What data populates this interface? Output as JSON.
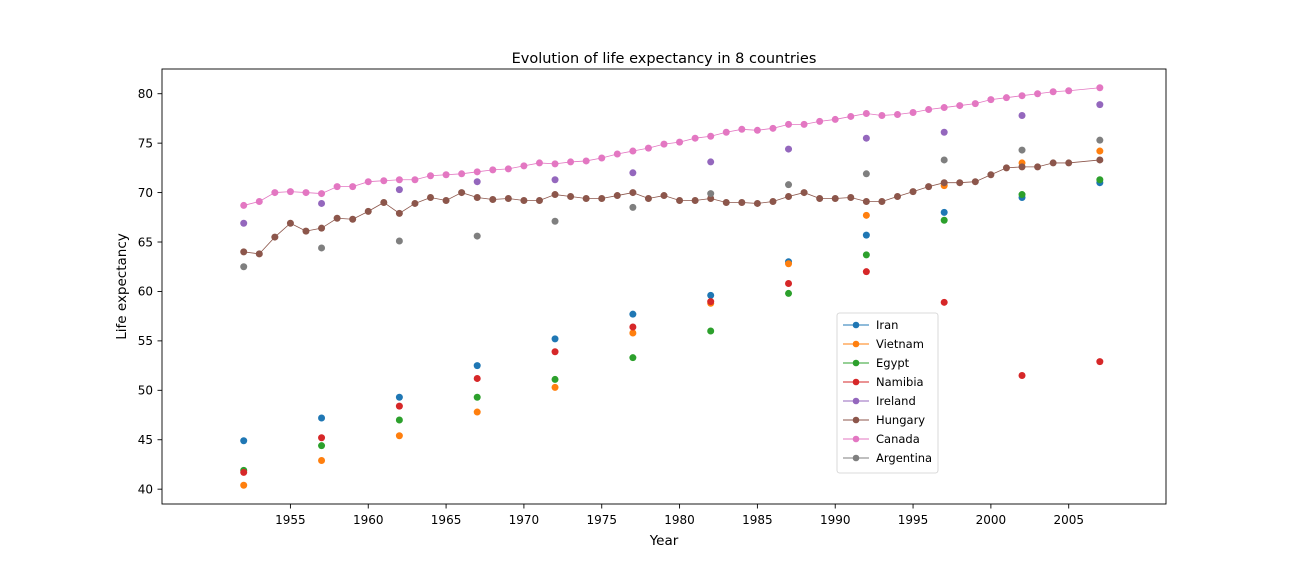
{
  "chart_data": {
    "type": "line",
    "title": "Evolution of life expectancy in 8 countries",
    "xlabel": "Year",
    "ylabel": "Life expectancy",
    "xlim": [
      1946.75,
      2011.25
    ],
    "ylim": [
      38.5,
      82.5
    ],
    "xticks": [
      1955,
      1960,
      1965,
      1970,
      1975,
      1980,
      1985,
      1990,
      1995,
      2000,
      2005
    ],
    "yticks": [
      40,
      45,
      50,
      55,
      60,
      65,
      70,
      75,
      80
    ],
    "legend_position": "center-right (lower)",
    "grid": false,
    "series": [
      {
        "name": "Iran",
        "color": "#1f77b4",
        "x": [
          1952,
          1957,
          1962,
          1967,
          1972,
          1977,
          1982,
          1987,
          1992,
          1997,
          2002,
          2007
        ],
        "y": [
          44.9,
          47.2,
          49.3,
          52.5,
          55.2,
          57.7,
          59.6,
          63.0,
          65.7,
          68.0,
          69.5,
          71.0
        ]
      },
      {
        "name": "Vietnam",
        "color": "#ff7f0e",
        "x": [
          1952,
          1957,
          1962,
          1967,
          1972,
          1977,
          1982,
          1987,
          1992,
          1997,
          2002,
          2007
        ],
        "y": [
          40.4,
          42.9,
          45.4,
          47.8,
          50.3,
          55.8,
          58.8,
          62.8,
          67.7,
          70.7,
          73.0,
          74.2
        ]
      },
      {
        "name": "Egypt",
        "color": "#2ca02c",
        "x": [
          1952,
          1957,
          1962,
          1967,
          1972,
          1977,
          1982,
          1987,
          1992,
          1997,
          2002,
          2007
        ],
        "y": [
          41.9,
          44.4,
          47.0,
          49.3,
          51.1,
          53.3,
          56.0,
          59.8,
          63.7,
          67.2,
          69.8,
          71.3
        ]
      },
      {
        "name": "Namibia",
        "color": "#d62728",
        "x": [
          1952,
          1957,
          1962,
          1967,
          1972,
          1977,
          1982,
          1987,
          1992,
          1997,
          2002,
          2007
        ],
        "y": [
          41.7,
          45.2,
          48.4,
          51.2,
          53.9,
          56.4,
          58.97,
          60.8,
          62.0,
          58.9,
          51.5,
          52.9
        ]
      },
      {
        "name": "Ireland",
        "color": "#9467bd",
        "x": [
          1952,
          1957,
          1962,
          1967,
          1972,
          1977,
          1982,
          1987,
          1992,
          1997,
          2002,
          2007
        ],
        "y": [
          66.9,
          68.9,
          70.3,
          71.1,
          71.3,
          72.0,
          73.1,
          74.4,
          75.5,
          76.1,
          77.8,
          78.9
        ]
      },
      {
        "name": "Hungary",
        "color": "#8c564b",
        "x": [
          1952,
          1953,
          1954,
          1955,
          1956,
          1957,
          1958,
          1959,
          1960,
          1961,
          1962,
          1963,
          1964,
          1965,
          1966,
          1967,
          1968,
          1969,
          1970,
          1971,
          1972,
          1973,
          1974,
          1975,
          1976,
          1977,
          1978,
          1979,
          1980,
          1981,
          1982,
          1983,
          1984,
          1985,
          1986,
          1987,
          1988,
          1989,
          1990,
          1991,
          1992,
          1993,
          1994,
          1995,
          1996,
          1997,
          1998,
          1999,
          2000,
          2001,
          2002,
          2003,
          2004,
          2005,
          2007
        ],
        "y": [
          64.0,
          63.8,
          65.5,
          66.9,
          66.1,
          66.4,
          67.4,
          67.3,
          68.1,
          69.0,
          67.9,
          68.9,
          69.5,
          69.2,
          70.0,
          69.5,
          69.3,
          69.4,
          69.2,
          69.2,
          69.8,
          69.6,
          69.4,
          69.4,
          69.7,
          70.0,
          69.4,
          69.7,
          69.2,
          69.2,
          69.4,
          69.0,
          69.0,
          68.9,
          69.1,
          69.6,
          70.0,
          69.4,
          69.4,
          69.5,
          69.1,
          69.1,
          69.6,
          70.1,
          70.6,
          71.0,
          71.0,
          71.1,
          71.8,
          72.5,
          72.6,
          72.6,
          73.0,
          73.0,
          73.3
        ]
      },
      {
        "name": "Canada",
        "color": "#e377c2",
        "x": [
          1952,
          1953,
          1954,
          1955,
          1956,
          1957,
          1958,
          1959,
          1960,
          1961,
          1962,
          1963,
          1964,
          1965,
          1966,
          1967,
          1968,
          1969,
          1970,
          1971,
          1972,
          1973,
          1974,
          1975,
          1976,
          1977,
          1978,
          1979,
          1980,
          1981,
          1982,
          1983,
          1984,
          1985,
          1986,
          1987,
          1988,
          1989,
          1990,
          1991,
          1992,
          1993,
          1994,
          1995,
          1996,
          1997,
          1998,
          1999,
          2000,
          2001,
          2002,
          2003,
          2004,
          2005,
          2007
        ],
        "y": [
          68.7,
          69.1,
          70.0,
          70.1,
          70.0,
          69.9,
          70.6,
          70.6,
          71.1,
          71.2,
          71.3,
          71.3,
          71.7,
          71.8,
          71.9,
          72.1,
          72.3,
          72.4,
          72.7,
          73.0,
          72.9,
          73.1,
          73.2,
          73.5,
          73.9,
          74.2,
          74.5,
          74.9,
          75.1,
          75.5,
          75.7,
          76.1,
          76.4,
          76.3,
          76.5,
          76.9,
          76.9,
          77.2,
          77.4,
          77.7,
          78.0,
          77.8,
          77.9,
          78.1,
          78.4,
          78.6,
          78.8,
          79.0,
          79.4,
          79.6,
          79.8,
          80.0,
          80.2,
          80.3,
          80.6
        ]
      },
      {
        "name": "Argentina",
        "color": "#7f7f7f",
        "x": [
          1952,
          1957,
          1962,
          1967,
          1972,
          1977,
          1982,
          1987,
          1992,
          1997,
          2002,
          2007
        ],
        "y": [
          62.5,
          64.4,
          65.1,
          65.6,
          67.1,
          68.5,
          69.9,
          70.8,
          71.9,
          73.3,
          74.3,
          75.3
        ]
      }
    ]
  }
}
